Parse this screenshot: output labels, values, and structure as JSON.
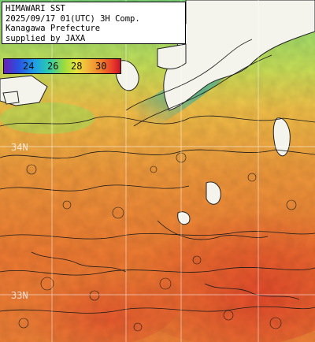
{
  "header": {
    "line1": "HIMAWARI SST",
    "line2": "2025/09/17 01(UTC) 3H Comp.",
    "line3": "Kanagawa Prefecture",
    "line4": "supplied by JAXA"
  },
  "colorbar": {
    "ticks": [
      "24",
      "26",
      "28",
      "30"
    ],
    "tick_values": [
      24,
      26,
      28,
      30
    ],
    "range": [
      22,
      32
    ],
    "colors": [
      "#6a1fb8",
      "#2a4fe0",
      "#1e9ee8",
      "#2ac9b0",
      "#9edc3c",
      "#e8e43a",
      "#f3b33a",
      "#f07a28",
      "#e8382a",
      "#c4142a"
    ]
  },
  "latitude_labels": [
    "34N",
    "33N"
  ],
  "colors": {
    "land": "#f4f4ec",
    "cool_water": "#3fbf7a",
    "warm_water": "#f0883a",
    "hot_water": "#e8502c",
    "grid": "#ffffff"
  }
}
